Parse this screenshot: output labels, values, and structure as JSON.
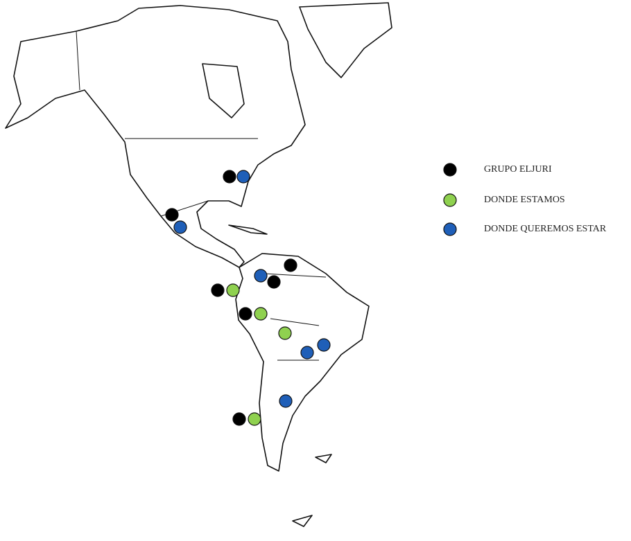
{
  "legend": [
    {
      "label": "GRUPO ELJURI",
      "color": "#000000"
    },
    {
      "label": "DONDE ESTAMOS",
      "color": "#8fd14f"
    },
    {
      "label": "DONDE QUEREMOS ESTAR",
      "color": "#1f5fb8"
    }
  ]
}
